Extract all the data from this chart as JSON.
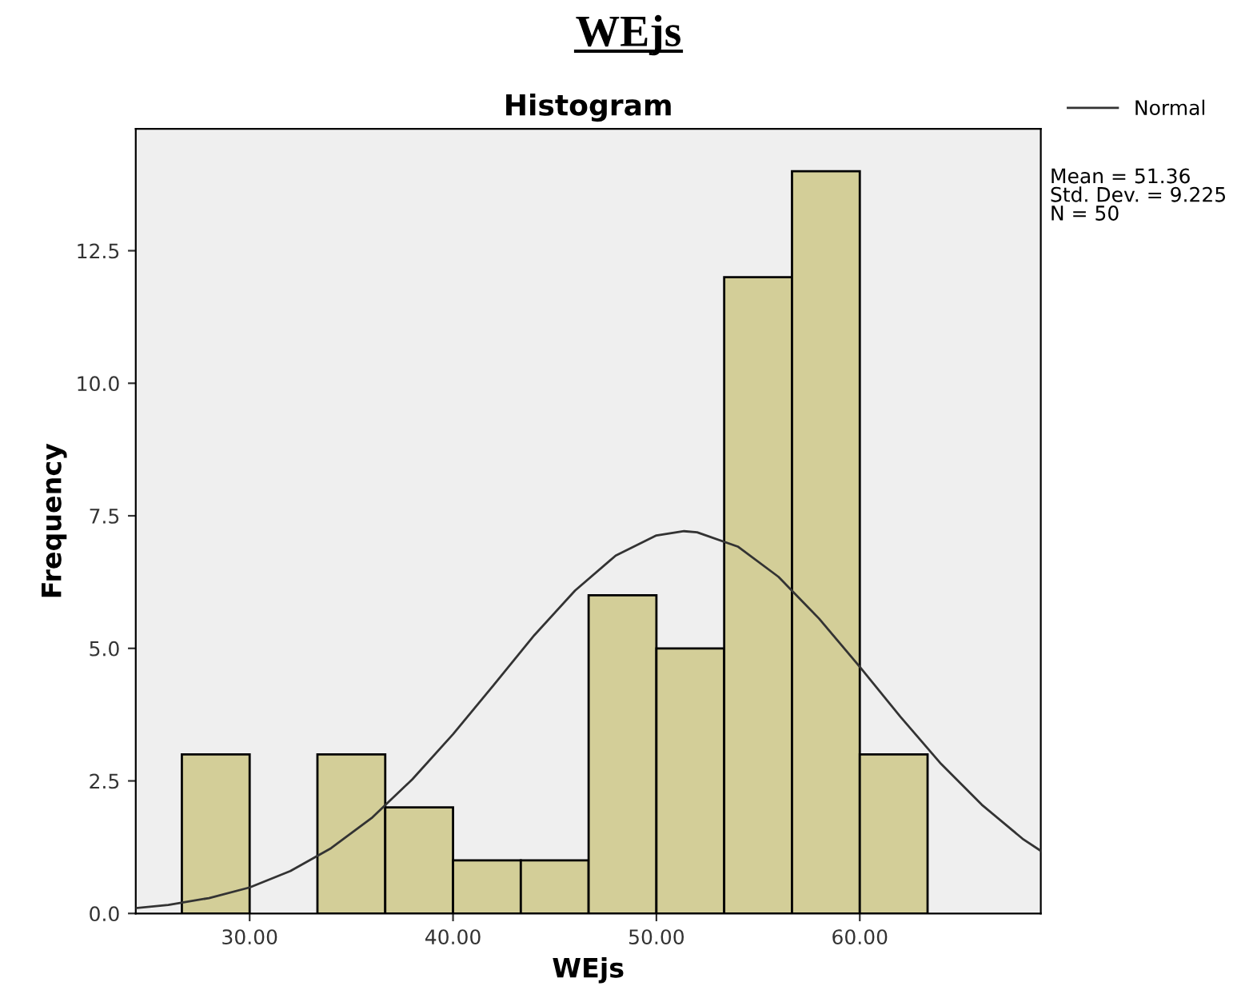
{
  "chart_data": {
    "type": "histogram",
    "title": "WEjs",
    "subtitle": "Histogram",
    "xlabel": "WEjs",
    "ylabel": "Frequency",
    "bins": [
      26.667,
      30,
      33.333,
      36.667,
      40,
      43.333,
      46.667,
      50,
      53.333,
      56.667,
      60,
      63.333
    ],
    "values": [
      3,
      0,
      3,
      2,
      1,
      1,
      6,
      5,
      12,
      14,
      3
    ],
    "color": "#d3ce98",
    "series": [
      {
        "name": "Normal",
        "type": "line",
        "color": "#333333",
        "x": [
          24.4,
          26,
          28,
          30,
          32,
          34,
          36,
          38,
          40,
          42,
          44,
          46,
          48,
          50,
          51.36,
          52,
          54,
          56,
          58,
          60,
          62,
          64,
          66,
          68,
          68.9
        ],
        "values": [
          0.1,
          0.16,
          0.29,
          0.49,
          0.8,
          1.23,
          1.8,
          2.53,
          3.38,
          4.31,
          5.25,
          6.09,
          6.75,
          7.13,
          7.21,
          7.19,
          6.92,
          6.35,
          5.56,
          4.65,
          3.71,
          2.82,
          2.05,
          1.41,
          1.18
        ]
      }
    ],
    "annotations": [
      "Mean = 51.36\nStd. Dev. = 9.225\nN = 50"
    ],
    "xlim": [
      24.4,
      68.9
    ],
    "ylim": [
      0,
      14.8
    ],
    "xticks": [
      {
        "value": 30,
        "label": "30.00"
      },
      {
        "value": 40,
        "label": "40.00"
      },
      {
        "value": 50,
        "label": "50.00"
      },
      {
        "value": 60,
        "label": "60.00"
      }
    ],
    "yticks": [
      {
        "value": 0,
        "label": "0.0"
      },
      {
        "value": 2.5,
        "label": "2.5"
      },
      {
        "value": 5,
        "label": "5.0"
      },
      {
        "value": 7.5,
        "label": "7.5"
      },
      {
        "value": 10,
        "label": "10.0"
      },
      {
        "value": 12.5,
        "label": "12.5"
      }
    ],
    "legend": "top right",
    "grid": false
  }
}
